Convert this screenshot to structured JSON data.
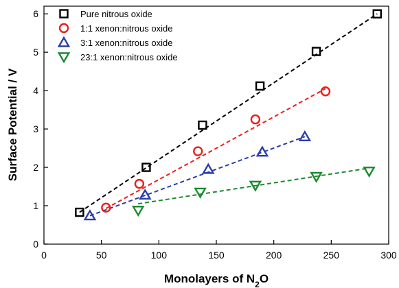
{
  "chart_data": {
    "type": "scatter",
    "xlabel": "Monolayers of N₂O",
    "ylabel": "Surface Potential / V",
    "xlim": [
      0,
      300
    ],
    "ylim": [
      0,
      6.2
    ],
    "xticks": [
      0,
      50,
      100,
      150,
      200,
      250,
      300
    ],
    "yticks": [
      0,
      1,
      2,
      3,
      4,
      5,
      6
    ],
    "xtick_labels": [
      "0",
      "50",
      "100",
      "150",
      "200",
      "250",
      "300"
    ],
    "ytick_labels": [
      "0",
      "1",
      "2",
      "3",
      "4",
      "5",
      "6"
    ],
    "grid": false,
    "legend_position": "top-left",
    "series": [
      {
        "name": "Pure nitrous oxide",
        "marker": "square",
        "color": "#000000",
        "x": [
          31,
          89,
          138,
          188,
          237,
          290
        ],
        "y": [
          0.83,
          2.0,
          3.1,
          4.12,
          5.02,
          6.0
        ],
        "fit": {
          "x": [
            31,
            290
          ],
          "y": [
            0.83,
            6.0
          ]
        }
      },
      {
        "name": "1:1 xenon:nitrous oxide",
        "marker": "circle",
        "color": "#e8201c",
        "x": [
          54,
          83,
          134,
          184,
          245
        ],
        "y": [
          0.95,
          1.57,
          2.42,
          3.25,
          3.98
        ],
        "fit": {
          "x": [
            54,
            245
          ],
          "y": [
            0.93,
            4.05
          ]
        }
      },
      {
        "name": "3:1 xenon:nitrous oxide",
        "marker": "triangle-up",
        "color": "#2a3ea6",
        "x": [
          40,
          88,
          143,
          190,
          227
        ],
        "y": [
          0.74,
          1.28,
          1.95,
          2.4,
          2.8
        ],
        "fit": {
          "x": [
            40,
            227
          ],
          "y": [
            0.74,
            2.8
          ]
        }
      },
      {
        "name": "23:1 xenon:nitrous oxide",
        "marker": "triangle-down",
        "color": "#1b8a2e",
        "x": [
          82,
          136,
          184,
          237,
          283
        ],
        "y": [
          0.88,
          1.35,
          1.53,
          1.76,
          1.9
        ],
        "fit": {
          "x": [
            82,
            283
          ],
          "y": [
            1.05,
            1.98
          ]
        }
      }
    ]
  }
}
